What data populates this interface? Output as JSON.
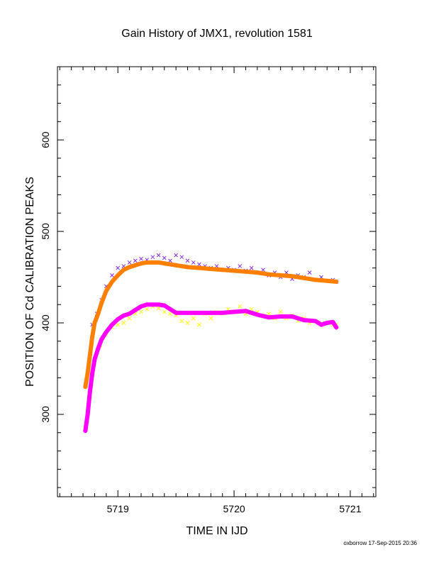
{
  "chart_data": {
    "type": "scatter",
    "title": "Gain History of JMX1, revolution 1581",
    "xlabel": "TIME IN IJD",
    "ylabel": "POSITION OF Cd CALIBRATION PEAKS",
    "xlim": [
      5718.48,
      5721.22
    ],
    "ylim": [
      210,
      680
    ],
    "xticks": [
      5719,
      5720,
      5721
    ],
    "yticks": [
      300,
      400,
      500,
      600
    ],
    "grid": false,
    "series": [
      {
        "style": "scatter-x",
        "color": "#8a2be2",
        "x": [
          5718.78,
          5718.82,
          5718.86,
          5718.9,
          5718.95,
          5719.0,
          5719.05,
          5719.1,
          5719.15,
          5719.2,
          5719.25,
          5719.3,
          5719.35,
          5719.4,
          5719.45,
          5719.5,
          5719.55,
          5719.6,
          5719.65,
          5719.7,
          5719.75,
          5719.8,
          5719.85,
          5719.9,
          5719.95,
          5720.0,
          5720.05,
          5720.1,
          5720.15,
          5720.2,
          5720.25,
          5720.3,
          5720.35,
          5720.4,
          5720.45,
          5720.5,
          5720.55,
          5720.6,
          5720.65,
          5720.7,
          5720.75,
          5720.8,
          5720.85,
          5720.88
        ],
        "values": [
          398,
          410,
          425,
          440,
          452,
          460,
          462,
          466,
          468,
          470,
          469,
          472,
          474,
          471,
          468,
          474,
          472,
          468,
          466,
          464,
          462,
          460,
          462,
          458,
          460,
          458,
          462,
          457,
          460,
          455,
          458,
          452,
          455,
          450,
          455,
          448,
          452,
          450,
          455,
          447,
          450,
          446,
          447,
          445
        ]
      },
      {
        "style": "scatter-x",
        "color": "#ffff00",
        "x": [
          5718.8,
          5718.85,
          5718.9,
          5718.95,
          5719.0,
          5719.05,
          5719.1,
          5719.15,
          5719.2,
          5719.25,
          5719.3,
          5719.35,
          5719.4,
          5719.45,
          5719.5,
          5719.55,
          5719.6,
          5719.65,
          5719.7,
          5719.75,
          5719.8,
          5719.85,
          5719.9,
          5719.95,
          5720.0,
          5720.05,
          5720.1,
          5720.15,
          5720.2,
          5720.25,
          5720.3,
          5720.35,
          5720.4,
          5720.45,
          5720.5,
          5720.55,
          5720.6,
          5720.65,
          5720.7,
          5720.75,
          5720.8,
          5720.85,
          5720.88
        ],
        "values": [
          360,
          375,
          388,
          395,
          398,
          400,
          405,
          410,
          412,
          415,
          418,
          416,
          412,
          410,
          408,
          402,
          400,
          405,
          398,
          410,
          405,
          412,
          410,
          415,
          412,
          418,
          410,
          415,
          412,
          408,
          410,
          405,
          412,
          405,
          408,
          402,
          405,
          400,
          402,
          398,
          400,
          398,
          398
        ]
      },
      {
        "style": "plus-line",
        "color": "#ff7f00",
        "x": [
          5718.72,
          5718.74,
          5718.76,
          5718.78,
          5718.8,
          5718.83,
          5718.86,
          5718.9,
          5718.95,
          5719.0,
          5719.05,
          5719.1,
          5719.15,
          5719.2,
          5719.25,
          5719.3,
          5719.35,
          5719.4,
          5719.5,
          5719.6,
          5719.7,
          5719.8,
          5719.9,
          5720.0,
          5720.1,
          5720.2,
          5720.3,
          5720.4,
          5720.5,
          5720.6,
          5720.7,
          5720.8,
          5720.88
        ],
        "values": [
          330,
          345,
          365,
          385,
          400,
          410,
          422,
          435,
          445,
          452,
          458,
          461,
          463,
          465,
          466,
          466,
          466,
          465,
          463,
          461,
          460,
          459,
          458,
          457,
          456,
          455,
          453,
          452,
          451,
          449,
          447,
          446,
          445
        ]
      },
      {
        "style": "plus-line",
        "color": "#ff00ff",
        "x": [
          5718.72,
          5718.74,
          5718.76,
          5718.78,
          5718.8,
          5718.83,
          5718.86,
          5718.9,
          5718.95,
          5719.0,
          5719.05,
          5719.1,
          5719.15,
          5719.2,
          5719.25,
          5719.3,
          5719.35,
          5719.4,
          5719.45,
          5719.5,
          5719.6,
          5719.7,
          5719.8,
          5719.9,
          5720.0,
          5720.1,
          5720.2,
          5720.3,
          5720.4,
          5720.5,
          5720.6,
          5720.7,
          5720.75,
          5720.8,
          5720.85,
          5720.88
        ],
        "values": [
          282,
          300,
          325,
          345,
          360,
          372,
          382,
          390,
          398,
          404,
          408,
          410,
          414,
          418,
          420,
          420,
          420,
          419,
          415,
          411,
          411,
          411,
          411,
          411,
          412,
          413,
          409,
          406,
          407,
          407,
          403,
          402,
          398,
          400,
          401,
          395
        ]
      }
    ]
  },
  "footer": {
    "credit": "oxborrow 17-Sep-2015 20:36"
  },
  "colors": {
    "axis": "#000000",
    "background": "#ffffff"
  }
}
